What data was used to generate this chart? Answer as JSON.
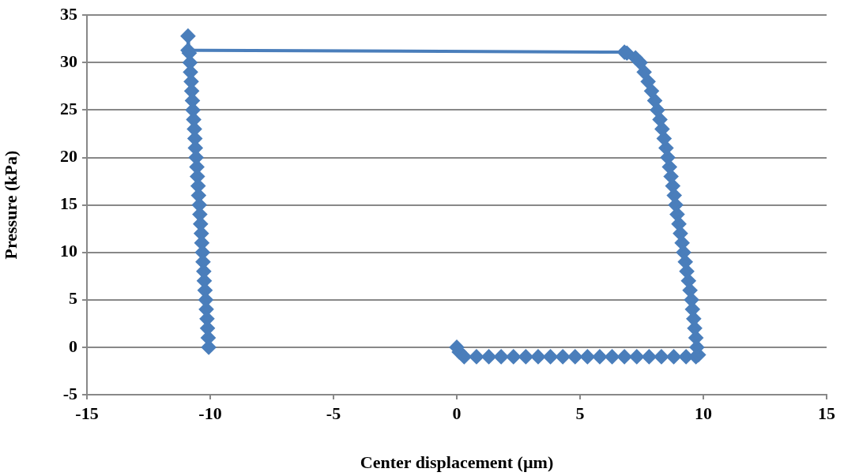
{
  "chart_data": {
    "type": "line",
    "xlabel": "Center displacement (µm)",
    "ylabel": "Pressure (kPa)",
    "series": [
      {
        "color": "#4a7ebb",
        "x": [
          0,
          0.1,
          0.3,
          0.8,
          1.3,
          1.8,
          2.3,
          2.8,
          3.3,
          3.8,
          4.3,
          4.8,
          5.3,
          5.8,
          6.3,
          6.8,
          7.3,
          7.8,
          8.3,
          8.8,
          9.3,
          9.7,
          9.8,
          9.74,
          9.7,
          9.65,
          9.61,
          9.56,
          9.52,
          9.46,
          9.4,
          9.33,
          9.27,
          9.2,
          9.14,
          9.07,
          9.01,
          8.94,
          8.88,
          8.82,
          8.76,
          8.69,
          8.63,
          8.56,
          8.49,
          8.41,
          8.33,
          8.24,
          8.14,
          8.03,
          7.9,
          7.76,
          7.6,
          7.44,
          7.25,
          6.9,
          6.8,
          -10.9,
          -10.9,
          -10.85,
          -10.82,
          -10.8,
          -10.77,
          -10.75,
          -10.72,
          -10.7,
          -10.67,
          -10.64,
          -10.62,
          -10.6,
          -10.57,
          -10.54,
          -10.52,
          -10.49,
          -10.47,
          -10.44,
          -10.42,
          -10.39,
          -10.36,
          -10.34,
          -10.31,
          -10.29,
          -10.26,
          -10.24,
          -10.21,
          -10.18,
          -10.16,
          -10.13,
          -10.11,
          -10.08,
          -10.06
        ],
        "values": [
          0,
          -0.5,
          -1,
          -1,
          -1,
          -1,
          -1,
          -1,
          -1,
          -1,
          -1,
          -1,
          -1,
          -1,
          -1,
          -1,
          -1,
          -1,
          -1,
          -1,
          -1,
          -1,
          -0.8,
          0,
          1,
          2,
          3,
          4,
          5,
          6,
          7,
          8,
          9,
          10,
          11,
          12,
          13,
          14,
          15,
          16,
          17,
          18,
          19,
          20,
          21,
          22,
          23,
          24,
          25,
          26,
          27,
          28,
          29,
          30,
          30.5,
          31,
          31.1,
          31.3,
          32.8,
          31,
          30,
          29,
          28,
          27,
          26,
          25,
          24,
          23,
          22,
          21,
          20,
          19,
          18,
          17,
          16,
          15,
          14,
          13,
          12,
          11,
          10,
          9,
          8,
          7,
          6,
          5,
          4,
          3,
          2,
          1,
          0
        ]
      }
    ],
    "xlim": [
      -15,
      15
    ],
    "xticks": [
      -15,
      -10,
      -5,
      0,
      5,
      10,
      15
    ],
    "ylim": [
      -5,
      35
    ],
    "yticks": [
      -5,
      0,
      5,
      10,
      15,
      20,
      25,
      30,
      35
    ],
    "grid": "y",
    "legend": false,
    "marker": "diamond",
    "line_style": "solid"
  }
}
